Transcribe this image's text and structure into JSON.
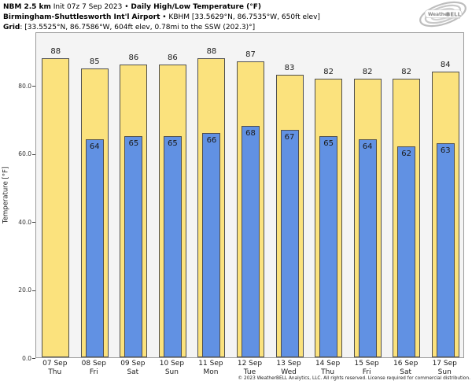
{
  "header": {
    "line1": {
      "bold1": "NBM 2.5 km",
      "regular1": " Init 07z 7 Sep 2023 • ",
      "bold2": "Daily High/Low Temperature (°F)"
    },
    "line2": {
      "bold": "Birmingham-Shuttlesworth Int'l Airport",
      "regular": " • KBHM [33.5629°N, 86.7535°W, 650ft elev]"
    },
    "line3": {
      "bold": "Grid",
      "regular": ": [33.5525°N, 86.7586°W, 604ft elev, 0.78mi to the SSW (202.3)°]"
    }
  },
  "logo": {
    "name_part1": "Weather",
    "name_part2": "BELL"
  },
  "footer": {
    "copyright": "© 2023 WeatherBELL Analytics, LLC. All rights reserved. License required for commercial distribution."
  },
  "chart_data": {
    "type": "bar",
    "title": "NBM 2.5 km Init 07z 7 Sep 2023 • Daily High/Low Temperature (°F)",
    "subtitle": "Birmingham-Shuttlesworth Int'l Airport • KBHM [33.5629°N, 86.7535°W, 650ft elev]",
    "grid_info": "Grid: [33.5525°N, 86.7586°W, 604ft elev, 0.78mi to the SSW (202.3)°]",
    "categories": [
      "07 Sep",
      "08 Sep",
      "09 Sep",
      "10 Sep",
      "11 Sep",
      "12 Sep",
      "13 Sep",
      "14 Sep",
      "15 Sep",
      "16 Sep",
      "17 Sep"
    ],
    "category_days": [
      "Thu",
      "Fri",
      "Sat",
      "Sun",
      "Mon",
      "Tue",
      "Wed",
      "Thu",
      "Fri",
      "Sat",
      "Sun"
    ],
    "series": [
      {
        "name": "Daily High",
        "color": "#FBE27D",
        "edge_color": "#4f4f4f",
        "values": [
          88,
          85,
          86,
          86,
          88,
          87,
          83,
          82,
          82,
          82,
          84
        ]
      },
      {
        "name": "Daily Low",
        "color": "#6191E3",
        "edge_color": "#4f4f4f",
        "values": [
          null,
          64,
          65,
          65,
          66,
          68,
          67,
          65,
          64,
          62,
          63
        ]
      }
    ],
    "xlabel": "",
    "ylabel": "Temperature [°F]",
    "yticks": [
      0,
      20,
      40,
      60,
      80
    ],
    "ytick_labels": [
      "0.0",
      "20.0",
      "40.0",
      "60.0",
      "80.0"
    ],
    "ylim": [
      0,
      95.8
    ],
    "grid": false,
    "legend_position": "none",
    "plot_background": "#f4f4f4",
    "value_labels": true
  }
}
